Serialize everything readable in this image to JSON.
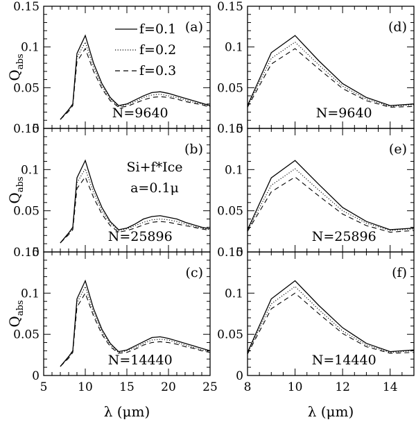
{
  "figure": {
    "x_axis_label_left": "λ (μm)",
    "x_axis_label_right": "λ (μm)",
    "y_axis_label_base": "Q",
    "y_axis_label_sub": "abs",
    "legend": [
      {
        "label": "f=0.1",
        "style": "solid"
      },
      {
        "label": "f=0.2",
        "style": "dotted"
      },
      {
        "label": "f=0.3",
        "style": "dashed"
      }
    ],
    "annotation_material": "Si+f*Ice",
    "annotation_size": "a=0.1μ"
  },
  "chart_data": [
    {
      "type": "line",
      "panel_label": "(a)",
      "n_label": "N=9640",
      "xlim": [
        5,
        25
      ],
      "ylim": [
        0,
        0.15
      ],
      "x": [
        7,
        8,
        8.5,
        9,
        10,
        11,
        12,
        13,
        14,
        15,
        16,
        17,
        18,
        19,
        20,
        21,
        22,
        23,
        24,
        25
      ],
      "series": [
        {
          "style": "solid",
          "values": [
            0.011,
            0.023,
            0.03,
            0.092,
            0.114,
            0.08,
            0.055,
            0.038,
            0.028,
            0.03,
            0.035,
            0.04,
            0.044,
            0.045,
            0.043,
            0.04,
            0.037,
            0.034,
            0.031,
            0.028
          ]
        },
        {
          "style": "dotted",
          "values": [
            0.011,
            0.022,
            0.029,
            0.087,
            0.106,
            0.075,
            0.052,
            0.036,
            0.027,
            0.029,
            0.033,
            0.038,
            0.041,
            0.042,
            0.04,
            0.038,
            0.035,
            0.032,
            0.03,
            0.027
          ]
        },
        {
          "style": "dashed",
          "values": [
            0.011,
            0.021,
            0.028,
            0.082,
            0.098,
            0.07,
            0.049,
            0.034,
            0.026,
            0.027,
            0.031,
            0.035,
            0.038,
            0.039,
            0.038,
            0.036,
            0.033,
            0.031,
            0.029,
            0.026
          ]
        }
      ]
    },
    {
      "type": "line",
      "panel_label": "(b)",
      "n_label": "N=25896",
      "xlim": [
        5,
        25
      ],
      "ylim": [
        0,
        0.15
      ],
      "x": [
        7,
        8,
        8.5,
        9,
        10,
        11,
        12,
        13,
        14,
        15,
        16,
        17,
        18,
        19,
        20,
        21,
        22,
        23,
        24,
        25
      ],
      "series": [
        {
          "style": "solid",
          "values": [
            0.011,
            0.023,
            0.03,
            0.09,
            0.111,
            0.078,
            0.054,
            0.037,
            0.027,
            0.029,
            0.034,
            0.04,
            0.043,
            0.044,
            0.042,
            0.04,
            0.036,
            0.033,
            0.03,
            0.028
          ]
        },
        {
          "style": "dotted",
          "values": [
            0.011,
            0.022,
            0.029,
            0.084,
            0.101,
            0.072,
            0.05,
            0.035,
            0.026,
            0.028,
            0.032,
            0.036,
            0.039,
            0.04,
            0.039,
            0.037,
            0.034,
            0.031,
            0.029,
            0.027
          ]
        },
        {
          "style": "dashed",
          "values": [
            0.011,
            0.021,
            0.027,
            0.077,
            0.091,
            0.066,
            0.046,
            0.032,
            0.024,
            0.026,
            0.029,
            0.033,
            0.036,
            0.037,
            0.036,
            0.034,
            0.032,
            0.03,
            0.028,
            0.026
          ]
        }
      ]
    },
    {
      "type": "line",
      "panel_label": "(c)",
      "n_label": "N=14440",
      "xlim": [
        5,
        25
      ],
      "ylim": [
        0,
        0.15
      ],
      "x": [
        7,
        8,
        8.5,
        9,
        10,
        11,
        12,
        13,
        14,
        15,
        16,
        17,
        18,
        19,
        20,
        21,
        22,
        23,
        24,
        25
      ],
      "series": [
        {
          "style": "solid",
          "values": [
            0.011,
            0.023,
            0.03,
            0.093,
            0.115,
            0.081,
            0.056,
            0.039,
            0.029,
            0.031,
            0.036,
            0.041,
            0.046,
            0.047,
            0.045,
            0.042,
            0.039,
            0.036,
            0.033,
            0.03
          ]
        },
        {
          "style": "dotted",
          "values": [
            0.011,
            0.022,
            0.029,
            0.088,
            0.108,
            0.076,
            0.053,
            0.037,
            0.028,
            0.03,
            0.034,
            0.039,
            0.043,
            0.044,
            0.043,
            0.04,
            0.037,
            0.034,
            0.031,
            0.029
          ]
        },
        {
          "style": "dashed",
          "values": [
            0.011,
            0.021,
            0.028,
            0.083,
            0.1,
            0.072,
            0.05,
            0.035,
            0.027,
            0.028,
            0.032,
            0.037,
            0.04,
            0.041,
            0.04,
            0.038,
            0.035,
            0.033,
            0.03,
            0.028
          ]
        }
      ]
    },
    {
      "type": "line",
      "panel_label": "(d)",
      "n_label": "N=9640",
      "xlim": [
        8,
        15
      ],
      "ylim": [
        0,
        0.15
      ],
      "x": [
        8,
        9,
        10,
        11,
        12,
        13,
        14,
        15
      ],
      "series": [
        {
          "style": "solid",
          "values": [
            0.028,
            0.093,
            0.114,
            0.083,
            0.055,
            0.038,
            0.028,
            0.03
          ]
        },
        {
          "style": "dotted",
          "values": [
            0.027,
            0.086,
            0.106,
            0.078,
            0.052,
            0.036,
            0.027,
            0.029
          ]
        },
        {
          "style": "dashed",
          "values": [
            0.026,
            0.079,
            0.098,
            0.073,
            0.049,
            0.034,
            0.026,
            0.027
          ]
        }
      ]
    },
    {
      "type": "line",
      "panel_label": "(e)",
      "n_label": "N=25896",
      "xlim": [
        8,
        15
      ],
      "ylim": [
        0,
        0.15
      ],
      "x": [
        8,
        9,
        10,
        11,
        12,
        13,
        14,
        15
      ],
      "series": [
        {
          "style": "solid",
          "values": [
            0.027,
            0.09,
            0.111,
            0.082,
            0.054,
            0.037,
            0.027,
            0.029
          ]
        },
        {
          "style": "dotted",
          "values": [
            0.026,
            0.081,
            0.101,
            0.075,
            0.05,
            0.035,
            0.026,
            0.028
          ]
        },
        {
          "style": "dashed",
          "values": [
            0.025,
            0.073,
            0.091,
            0.068,
            0.046,
            0.032,
            0.024,
            0.026
          ]
        }
      ]
    },
    {
      "type": "line",
      "panel_label": "(f)",
      "n_label": "N=14440",
      "xlim": [
        8,
        15
      ],
      "ylim": [
        0,
        0.15
      ],
      "x": [
        8,
        9,
        10,
        11,
        12,
        13,
        14,
        15
      ],
      "series": [
        {
          "style": "solid",
          "values": [
            0.028,
            0.093,
            0.115,
            0.085,
            0.058,
            0.039,
            0.029,
            0.031
          ]
        },
        {
          "style": "dotted",
          "values": [
            0.027,
            0.087,
            0.108,
            0.08,
            0.054,
            0.037,
            0.028,
            0.03
          ]
        },
        {
          "style": "dashed",
          "values": [
            0.026,
            0.081,
            0.1,
            0.075,
            0.051,
            0.035,
            0.027,
            0.028
          ]
        }
      ]
    }
  ]
}
